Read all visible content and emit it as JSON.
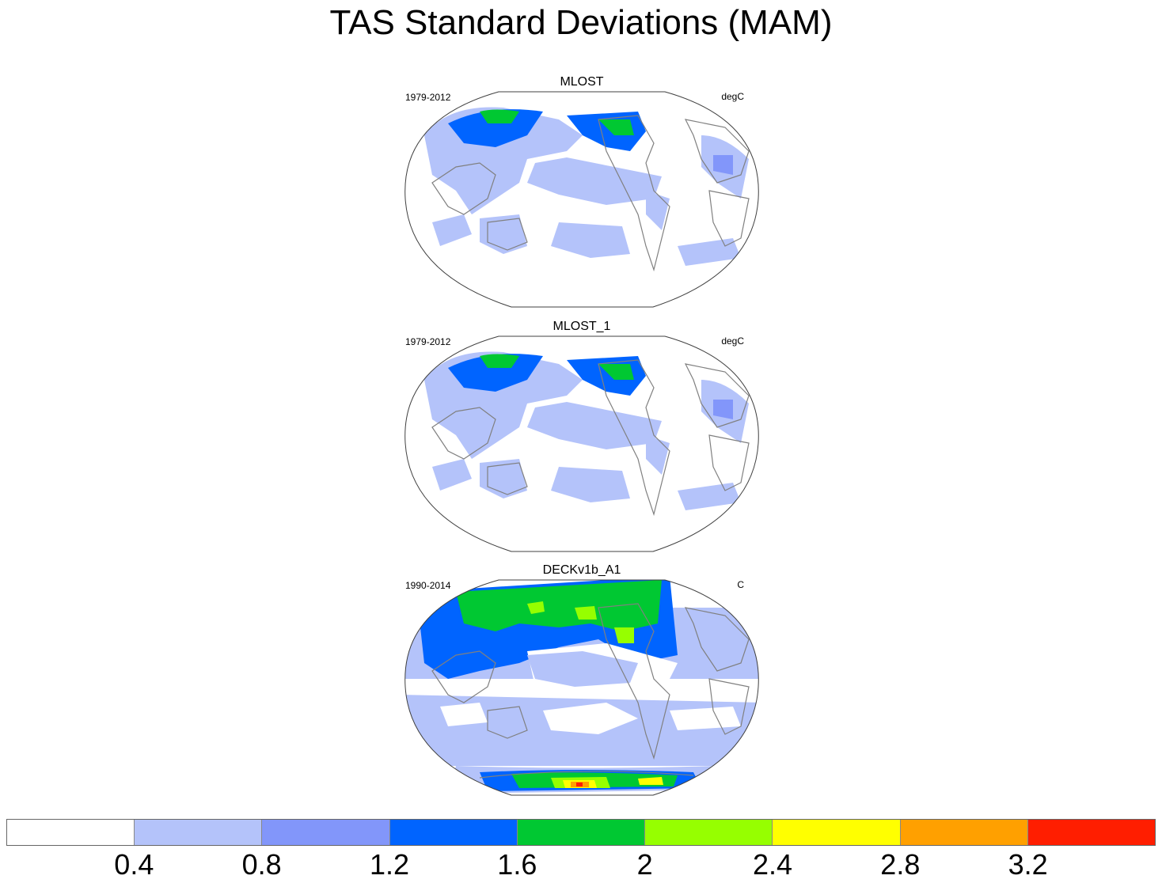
{
  "title": "TAS Standard Deviations (MAM)",
  "panels": [
    {
      "name": "MLOST",
      "period": "1979-2012",
      "units": "degC"
    },
    {
      "name": "MLOST_1",
      "period": "1979-2012",
      "units": "degC"
    },
    {
      "name": "DECKv1b_A1",
      "period": "1990-2014",
      "units": "C"
    }
  ],
  "colorbar": {
    "colors": [
      "#ffffff",
      "#b4c3fa",
      "#8296fa",
      "#0064ff",
      "#00c832",
      "#96ff00",
      "#ffff00",
      "#ffa000",
      "#ff1e00"
    ],
    "labels": [
      "0.4",
      "0.8",
      "1.2",
      "1.6",
      "2",
      "2.4",
      "2.8",
      "3.2"
    ]
  },
  "colors": {
    "coastline": "#808080",
    "map_outline": "#404040"
  }
}
